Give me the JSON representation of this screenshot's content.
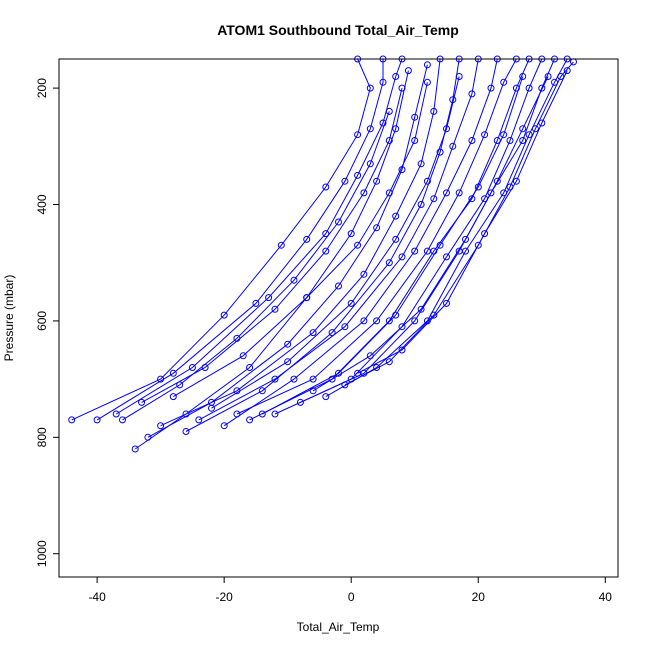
{
  "chart_data": {
    "type": "scatter",
    "title": "ATOM1 Southbound Total_Air_Temp",
    "xlabel": "Total_Air_Temp",
    "ylabel": "Pressure (mbar)",
    "xlim": [
      -46,
      42
    ],
    "ylim": [
      1040,
      150
    ],
    "y_reversed": true,
    "x_ticks": [
      -40,
      -20,
      0,
      20,
      40
    ],
    "y_ticks": [
      200,
      400,
      600,
      800,
      1000
    ],
    "grid": false,
    "legend": "none",
    "colors": {
      "series": "#0000ff"
    },
    "marker": "open-circle",
    "series": [
      {
        "points": [
          [
            -44,
            770
          ],
          [
            -30,
            700
          ],
          [
            -20,
            590
          ],
          [
            -11,
            470
          ],
          [
            -4,
            370
          ],
          [
            1,
            280
          ],
          [
            3,
            200
          ],
          [
            1,
            150
          ]
        ]
      },
      {
        "points": [
          [
            -40,
            770
          ],
          [
            -28,
            690
          ],
          [
            -15,
            570
          ],
          [
            -7,
            460
          ],
          [
            -1,
            360
          ],
          [
            3,
            270
          ],
          [
            5,
            190
          ],
          [
            5,
            150
          ]
        ]
      },
      {
        "points": [
          [
            -37,
            760
          ],
          [
            -25,
            680
          ],
          [
            -13,
            560
          ],
          [
            -4,
            450
          ],
          [
            1,
            350
          ],
          [
            5,
            260
          ],
          [
            7,
            180
          ],
          [
            8,
            150
          ]
        ]
      },
      {
        "points": [
          [
            -34,
            820
          ],
          [
            -26,
            760
          ],
          [
            -16,
            680
          ],
          [
            -7,
            560
          ],
          [
            0,
            450
          ],
          [
            4,
            360
          ],
          [
            7,
            270
          ],
          [
            9,
            170
          ]
        ]
      },
      {
        "points": [
          [
            -32,
            800
          ],
          [
            -22,
            740
          ],
          [
            -10,
            640
          ],
          [
            -2,
            540
          ],
          [
            4,
            440
          ],
          [
            8,
            340
          ],
          [
            10,
            250
          ],
          [
            12,
            160
          ]
        ]
      },
      {
        "points": [
          [
            -30,
            780
          ],
          [
            -18,
            720
          ],
          [
            -6,
            620
          ],
          [
            2,
            520
          ],
          [
            7,
            420
          ],
          [
            11,
            330
          ],
          [
            13,
            240
          ],
          [
            14,
            150
          ]
        ]
      },
      {
        "points": [
          [
            -26,
            790
          ],
          [
            -14,
            720
          ],
          [
            -3,
            620
          ],
          [
            6,
            500
          ],
          [
            11,
            400
          ],
          [
            14,
            310
          ],
          [
            16,
            220
          ],
          [
            17,
            150
          ]
        ]
      },
      {
        "points": [
          [
            -24,
            770
          ],
          [
            -12,
            700
          ],
          [
            -1,
            610
          ],
          [
            8,
            490
          ],
          [
            13,
            390
          ],
          [
            16,
            300
          ],
          [
            19,
            210
          ],
          [
            20,
            150
          ]
        ]
      },
      {
        "points": [
          [
            -20,
            780
          ],
          [
            -9,
            700
          ],
          [
            2,
            600
          ],
          [
            10,
            480
          ],
          [
            15,
            380
          ],
          [
            19,
            290
          ],
          [
            22,
            200
          ],
          [
            23,
            150
          ]
        ]
      },
      {
        "points": [
          [
            -18,
            760
          ],
          [
            -6,
            700
          ],
          [
            4,
            600
          ],
          [
            12,
            480
          ],
          [
            17,
            380
          ],
          [
            21,
            280
          ],
          [
            24,
            190
          ],
          [
            26,
            150
          ]
        ]
      },
      {
        "points": [
          [
            -16,
            770
          ],
          [
            -3,
            700
          ],
          [
            6,
            600
          ],
          [
            13,
            480
          ],
          [
            19,
            390
          ],
          [
            23,
            290
          ],
          [
            26,
            200
          ],
          [
            28,
            150
          ]
        ]
      },
      {
        "points": [
          [
            -12,
            760
          ],
          [
            0,
            700
          ],
          [
            8,
            610
          ],
          [
            15,
            490
          ],
          [
            21,
            390
          ],
          [
            25,
            290
          ],
          [
            28,
            200
          ],
          [
            30,
            150
          ]
        ]
      },
      {
        "points": [
          [
            -8,
            740
          ],
          [
            2,
            690
          ],
          [
            10,
            600
          ],
          [
            17,
            480
          ],
          [
            22,
            380
          ],
          [
            27,
            290
          ],
          [
            30,
            200
          ],
          [
            32,
            150
          ]
        ]
      },
      {
        "points": [
          [
            -4,
            730
          ],
          [
            4,
            680
          ],
          [
            12,
            600
          ],
          [
            18,
            480
          ],
          [
            24,
            380
          ],
          [
            28,
            280
          ],
          [
            32,
            190
          ],
          [
            34,
            150
          ]
        ]
      },
      {
        "points": [
          [
            -1,
            710
          ],
          [
            6,
            670
          ],
          [
            13,
            590
          ],
          [
            20,
            470
          ],
          [
            25,
            370
          ],
          [
            29,
            270
          ],
          [
            33,
            180
          ],
          [
            35,
            155
          ]
        ]
      },
      {
        "points": [
          [
            1,
            690
          ],
          [
            8,
            650
          ],
          [
            15,
            570
          ],
          [
            21,
            450
          ],
          [
            26,
            360
          ],
          [
            30,
            260
          ],
          [
            34,
            170
          ]
        ]
      },
      {
        "points": [
          [
            -33,
            740
          ],
          [
            -23,
            680
          ],
          [
            -12,
            580
          ],
          [
            -4,
            480
          ],
          [
            2,
            380
          ],
          [
            6,
            290
          ],
          [
            8,
            200
          ]
        ]
      },
      {
        "points": [
          [
            -28,
            730
          ],
          [
            -17,
            660
          ],
          [
            -7,
            560
          ],
          [
            1,
            470
          ],
          [
            6,
            380
          ],
          [
            10,
            290
          ],
          [
            12,
            190
          ]
        ]
      },
      {
        "points": [
          [
            -22,
            750
          ],
          [
            -10,
            670
          ],
          [
            0,
            570
          ],
          [
            7,
            460
          ],
          [
            12,
            360
          ],
          [
            15,
            270
          ],
          [
            17,
            180
          ]
        ]
      },
      {
        "points": [
          [
            -14,
            760
          ],
          [
            -2,
            690
          ],
          [
            7,
            590
          ],
          [
            14,
            470
          ],
          [
            20,
            370
          ],
          [
            24,
            280
          ],
          [
            27,
            180
          ]
        ]
      },
      {
        "points": [
          [
            -36,
            770
          ],
          [
            -27,
            710
          ],
          [
            -18,
            630
          ],
          [
            -9,
            530
          ],
          [
            -2,
            430
          ],
          [
            3,
            330
          ],
          [
            6,
            240
          ]
        ]
      },
      {
        "points": [
          [
            -6,
            720
          ],
          [
            3,
            660
          ],
          [
            11,
            580
          ],
          [
            18,
            460
          ],
          [
            23,
            360
          ],
          [
            27,
            270
          ],
          [
            31,
            180
          ]
        ]
      }
    ]
  }
}
